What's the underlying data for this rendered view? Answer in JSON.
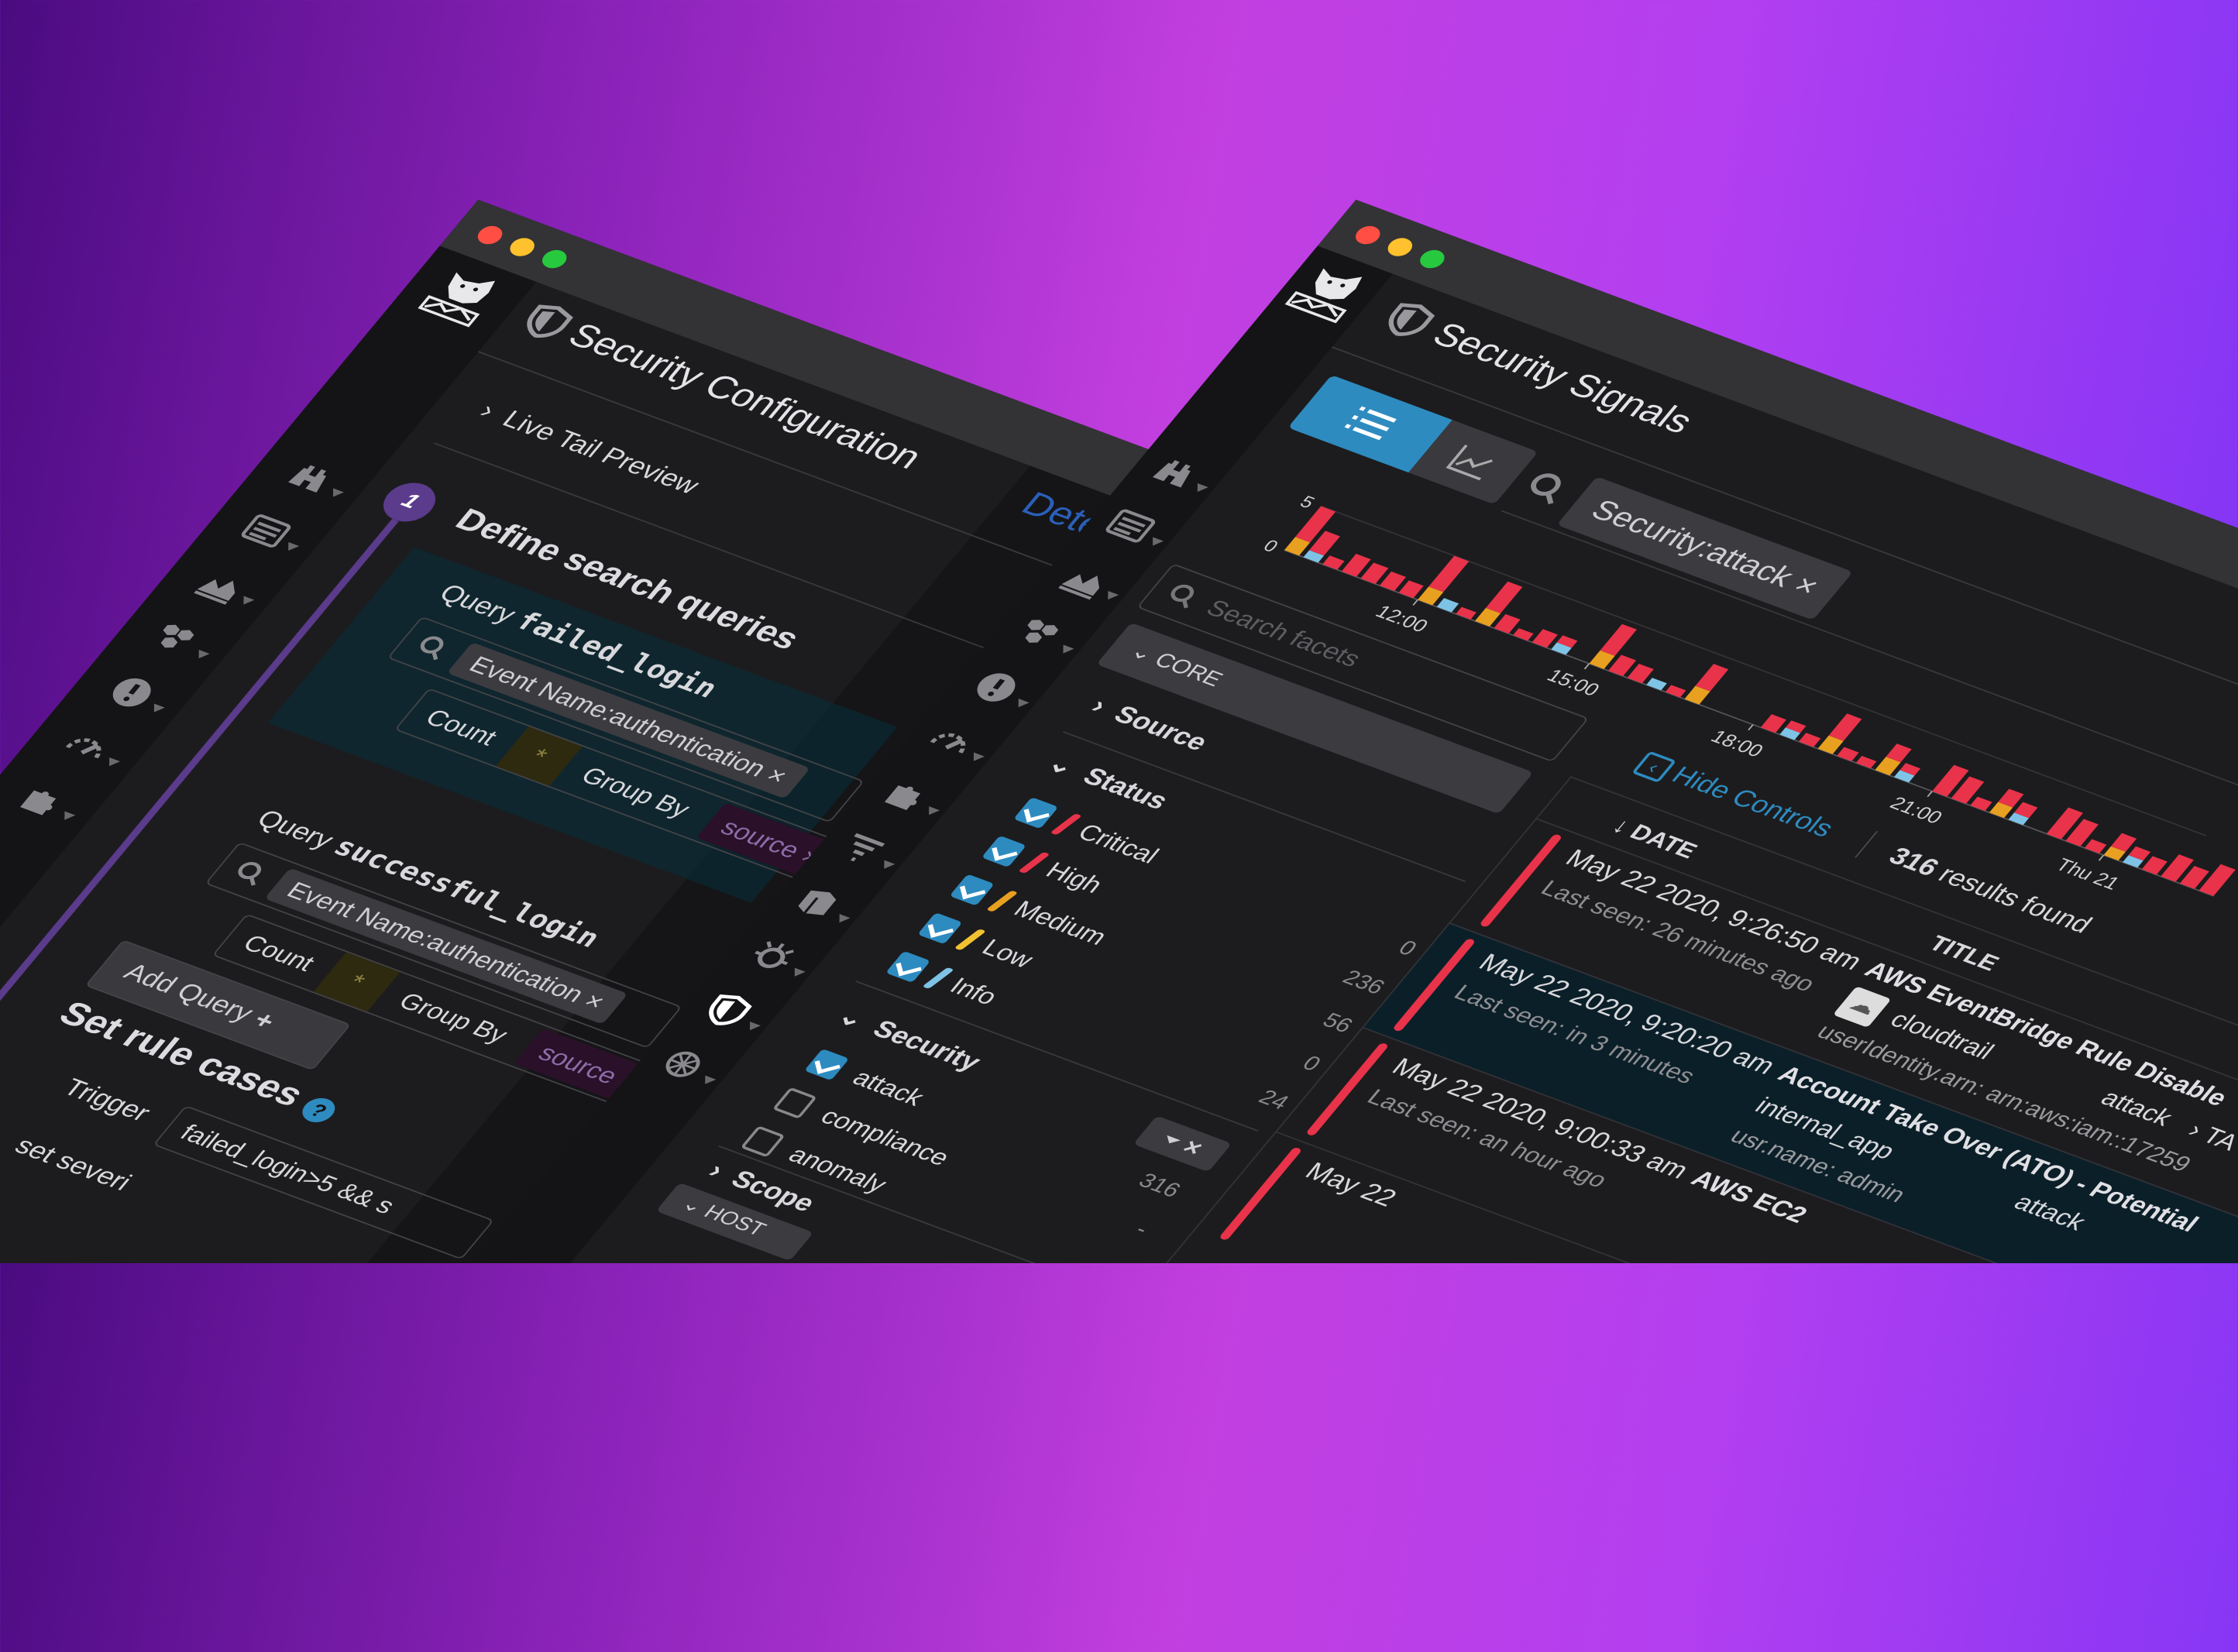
{
  "colors": {
    "accent": "#2e8bc0",
    "critical": "#e8334a",
    "medium": "#e8a020",
    "info": "#7ec3e6",
    "step": "#5b3b8c",
    "titlebar": "#333335",
    "window": "#1c1c1e"
  },
  "left_window": {
    "title": "Security Configuration",
    "tab_detect": "Detect",
    "live_tail": "Live Tail Preview",
    "step_number": "1",
    "define_heading": "Define search queries",
    "queries": [
      {
        "prefix": "Query",
        "name": "failed_login",
        "search": "Event Name:authentication",
        "count_label": "Count",
        "count_value": "*",
        "group_by_label": "Group By",
        "group_by_value": "source"
      },
      {
        "prefix": "Query",
        "name": "successful_login",
        "search": "Event Name:authentication",
        "count_label": "Count",
        "count_value": "*",
        "group_by_label": "Group By",
        "group_by_value": "source"
      }
    ],
    "add_query": "Add Query",
    "rule_cases_heading": "Set rule cases",
    "trigger_label": "Trigger",
    "trigger_value": "failed_login>5 && s",
    "severity_label": "set severi",
    "sidebar_icons": [
      "binoculars-icon",
      "logs-icon",
      "area-chart-icon",
      "hexagons-icon",
      "alert-icon",
      "gauge-icon",
      "puzzle-icon"
    ]
  },
  "right_window": {
    "title": "Security Signals",
    "view_toggle": {
      "active": "list-icon",
      "other": "chart-icon"
    },
    "search_query": "Security:attack",
    "facets": {
      "search_placeholder": "Search facets",
      "core_label": "CORE",
      "source_label": "Source",
      "status_label": "Status",
      "status_items": [
        {
          "label": "Critical",
          "count": "0",
          "checked": true,
          "color": "#e8334a"
        },
        {
          "label": "High",
          "count": "236",
          "checked": true,
          "color": "#e8334a"
        },
        {
          "label": "Medium",
          "count": "56",
          "checked": true,
          "color": "#e8a020"
        },
        {
          "label": "Low",
          "count": "0",
          "checked": true,
          "color": "#f2c230"
        },
        {
          "label": "Info",
          "count": "24",
          "checked": true,
          "color": "#7ec3e6"
        }
      ],
      "security_label": "Security",
      "security_items": [
        {
          "label": "attack",
          "count": "316",
          "checked": true
        },
        {
          "label": "compliance",
          "count": "-",
          "checked": false
        },
        {
          "label": "anomaly",
          "count": "",
          "checked": false
        }
      ],
      "scope_label": "Scope",
      "host_label": "HOST"
    },
    "hide_controls": "Hide Controls",
    "results_count": "316",
    "results_suffix": "results found",
    "columns": {
      "date": "DATE",
      "title": "TITLE"
    },
    "rows": [
      {
        "date": "May 22 2020, 9:26:50 am",
        "last_seen": "Last seen: 26 minutes ago",
        "title": "AWS EventBridge Rule Disable",
        "source": "cloudtrail",
        "attr": "userIdentity.arn: arn:aws:iam::17259",
        "tag": "attack",
        "tag2": "›  TA",
        "selected": false
      },
      {
        "date": "May 22 2020, 9:20:20 am",
        "last_seen": "Last seen: in 3 minutes",
        "title": "Account Take Over (ATO) - Potential",
        "source": "internal_app",
        "attr": "usr.name: admin",
        "tag": "attack",
        "tag2": "",
        "selected": true
      },
      {
        "date": "May 22 2020, 9:00:33 am",
        "last_seen": "Last seen: an hour ago",
        "title": "AWS EC2",
        "source": "",
        "attr": "",
        "tag": "",
        "tag2": "",
        "selected": false
      },
      {
        "date": "May 22",
        "last_seen": "",
        "title": "",
        "source": "",
        "attr": "",
        "tag": "",
        "tag2": "",
        "selected": false
      }
    ],
    "sidebar_icons": [
      "binoculars-icon",
      "logs-icon",
      "area-chart-icon",
      "hexagons-icon",
      "alert-icon",
      "gauge-icon",
      "puzzle-icon",
      "filter-icon",
      "book-icon",
      "bug-icon",
      "shield-icon",
      "globe-icon"
    ]
  },
  "chart_data": {
    "type": "bar",
    "stacked": true,
    "ylim": [
      0,
      5
    ],
    "yticks": [
      "0",
      "5"
    ],
    "xticks": [
      {
        "label": "12:00",
        "index": 7
      },
      {
        "label": "15:00",
        "index": 16
      },
      {
        "label": "18:00",
        "index": 24.6
      },
      {
        "label": "21:00",
        "index": 34
      },
      {
        "label": "Thu 21",
        "index": 43
      }
    ],
    "series_colors": [
      "#e8a020",
      "#7ec3e6",
      "#e8334a"
    ],
    "series": [
      {
        "values": [
          1.5,
          0,
          0,
          0,
          0,
          0,
          0,
          1.5,
          0,
          0,
          1.5,
          0,
          0,
          0,
          0,
          0,
          1.5,
          0,
          0,
          0,
          0,
          1.5,
          0,
          0,
          0,
          0,
          0,
          0,
          1.5,
          0,
          0,
          1.5,
          0,
          0,
          0,
          0,
          0,
          1.2,
          0,
          0,
          0,
          0,
          0,
          1,
          0,
          0,
          0,
          0,
          0
        ]
      },
      {
        "values": [
          0,
          0.8,
          0,
          0,
          0,
          0,
          0,
          0,
          1,
          0,
          0,
          0,
          0,
          0,
          0.8,
          0,
          0,
          0,
          0,
          0.8,
          0,
          0,
          0,
          0,
          0,
          0,
          0.8,
          0,
          0,
          0,
          0,
          0,
          0.8,
          0,
          0,
          0,
          0,
          0,
          0.8,
          0,
          0,
          0,
          0,
          0,
          0.8,
          0,
          0,
          0,
          0
        ]
      },
      {
        "values": [
          3.5,
          2.2,
          1,
          2,
          1.8,
          1.6,
          1.4,
          3.5,
          0,
          0.8,
          3,
          1.6,
          0.8,
          1.5,
          0.8,
          0,
          3,
          1.8,
          1.6,
          0,
          0.8,
          2.5,
          0,
          0,
          0,
          1.5,
          0.8,
          1,
          2.5,
          1,
          0.8,
          1.5,
          0.8,
          0,
          3,
          2.5,
          1,
          1.5,
          1.2,
          0,
          3,
          2.5,
          1,
          1.5,
          1,
          1.5,
          2.5,
          2,
          3
        ]
      }
    ]
  }
}
